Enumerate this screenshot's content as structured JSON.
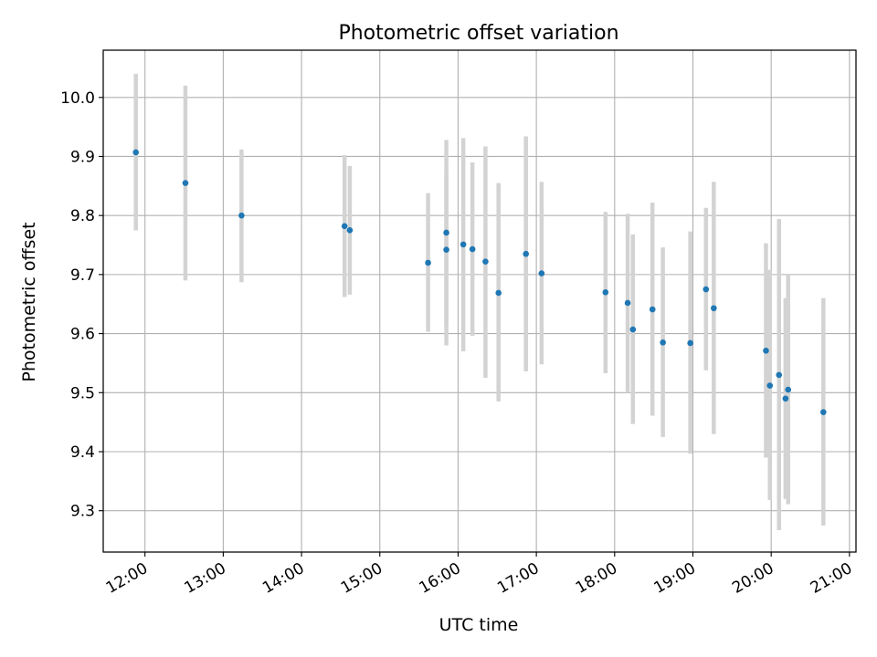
{
  "chart_data": {
    "type": "scatter",
    "title": "Photometric offset variation",
    "xlabel": "UTC time",
    "ylabel": "Photometric offset",
    "x_unit": "hours UTC",
    "xlim": [
      "11:28",
      "21:05"
    ],
    "ylim": [
      9.23,
      10.08
    ],
    "x_ticks": [
      "12:00",
      "13:00",
      "14:00",
      "15:00",
      "16:00",
      "17:00",
      "18:00",
      "19:00",
      "20:00",
      "21:00"
    ],
    "y_ticks": [
      "9.3",
      "9.4",
      "9.5",
      "9.6",
      "9.7",
      "9.8",
      "9.9",
      "10.0"
    ],
    "grid": true,
    "point_color": "#1f77b4",
    "errorbar_color": "#d3d3d3",
    "points": [
      {
        "x": "11:53",
        "y": 9.907,
        "lo": 9.775,
        "hi": 10.04
      },
      {
        "x": "12:31",
        "y": 9.855,
        "lo": 9.69,
        "hi": 10.02
      },
      {
        "x": "13:14",
        "y": 9.8,
        "lo": 9.687,
        "hi": 9.912
      },
      {
        "x": "14:33",
        "y": 9.782,
        "lo": 9.662,
        "hi": 9.902
      },
      {
        "x": "14:37",
        "y": 9.775,
        "lo": 9.666,
        "hi": 9.884
      },
      {
        "x": "15:37",
        "y": 9.72,
        "lo": 9.603,
        "hi": 9.838
      },
      {
        "x": "15:51",
        "y": 9.742,
        "lo": 9.615,
        "hi": 9.87
      },
      {
        "x": "15:51",
        "y": 9.771,
        "lo": 9.58,
        "hi": 9.928
      },
      {
        "x": "16:04",
        "y": 9.751,
        "lo": 9.57,
        "hi": 9.931
      },
      {
        "x": "16:11",
        "y": 9.743,
        "lo": 9.596,
        "hi": 9.89
      },
      {
        "x": "16:21",
        "y": 9.722,
        "lo": 9.525,
        "hi": 9.917
      },
      {
        "x": "16:31",
        "y": 9.669,
        "lo": 9.485,
        "hi": 9.855
      },
      {
        "x": "16:52",
        "y": 9.735,
        "lo": 9.536,
        "hi": 9.934
      },
      {
        "x": "17:04",
        "y": 9.702,
        "lo": 9.548,
        "hi": 9.857
      },
      {
        "x": "17:53",
        "y": 9.67,
        "lo": 9.533,
        "hi": 9.806
      },
      {
        "x": "18:10",
        "y": 9.652,
        "lo": 9.5,
        "hi": 9.803
      },
      {
        "x": "18:14",
        "y": 9.607,
        "lo": 9.447,
        "hi": 9.768
      },
      {
        "x": "18:29",
        "y": 9.641,
        "lo": 9.461,
        "hi": 9.822
      },
      {
        "x": "18:37",
        "y": 9.585,
        "lo": 9.425,
        "hi": 9.746
      },
      {
        "x": "18:58",
        "y": 9.584,
        "lo": 9.397,
        "hi": 9.773
      },
      {
        "x": "19:10",
        "y": 9.675,
        "lo": 9.538,
        "hi": 9.813
      },
      {
        "x": "19:16",
        "y": 9.643,
        "lo": 9.43,
        "hi": 9.857
      },
      {
        "x": "19:56",
        "y": 9.571,
        "lo": 9.39,
        "hi": 9.753
      },
      {
        "x": "19:59",
        "y": 9.512,
        "lo": 9.318,
        "hi": 9.708
      },
      {
        "x": "20:06",
        "y": 9.53,
        "lo": 9.267,
        "hi": 9.794
      },
      {
        "x": "20:11",
        "y": 9.49,
        "lo": 9.32,
        "hi": 9.66
      },
      {
        "x": "20:13",
        "y": 9.505,
        "lo": 9.311,
        "hi": 9.7
      },
      {
        "x": "20:40",
        "y": 9.467,
        "lo": 9.275,
        "hi": 9.66
      }
    ]
  }
}
